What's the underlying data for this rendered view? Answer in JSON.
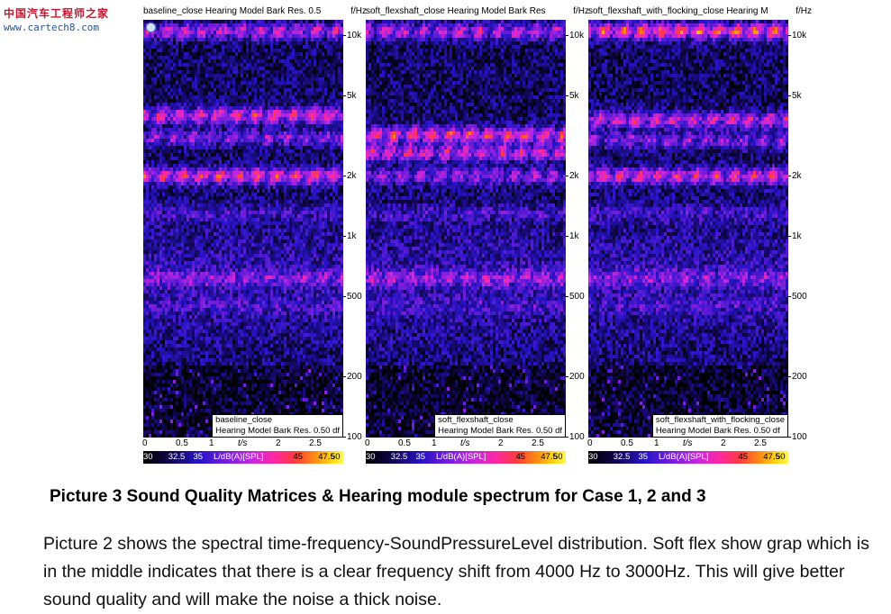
{
  "watermark": {
    "text": "中国汽车工程师之家",
    "url": "www.cartech8.com"
  },
  "chart_data": [
    {
      "type": "heatmap",
      "title": "baseline_close Hearing Model Bark Res. 0.5",
      "yunit": "f/Hz",
      "overlay_name": "baseline_close",
      "overlay_res": "Hearing Model Bark Res. 0.50 df",
      "xlabel": "t/s",
      "xticks": [
        "0",
        "0.5",
        "1",
        "2",
        "2.5"
      ],
      "xlim": [
        0,
        3
      ],
      "yticks": [
        "10k",
        "5k",
        "2k",
        "1k",
        "500",
        "200",
        "100"
      ],
      "ylim": [
        100,
        12000
      ],
      "ylog": true,
      "colorbar": {
        "label": "L/dB(A)[SPL]",
        "ticks": [
          "30",
          "32.5",
          "35",
          "45",
          "47.5",
          "50"
        ],
        "range": [
          30,
          50
        ]
      },
      "bands": [
        {
          "hz": 10500,
          "level": 42
        },
        {
          "hz": 4000,
          "level": 44
        },
        {
          "hz": 3100,
          "level": 40
        },
        {
          "hz": 2000,
          "level": 45
        },
        {
          "hz": 1300,
          "level": 37
        },
        {
          "hz": 620,
          "level": 40
        },
        {
          "hz": 450,
          "level": 37
        }
      ]
    },
    {
      "type": "heatmap",
      "title": "soft_flexshaft_close Hearing Model Bark Res",
      "yunit": "f/Hz",
      "overlay_name": "soft_flexshaft_close",
      "overlay_res": "Hearing Model Bark Res. 0.50 df",
      "xlabel": "t/s",
      "xticks": [
        "0",
        "0.5",
        "1",
        "2",
        "2.5"
      ],
      "xlim": [
        0,
        3
      ],
      "yticks": [
        "10k",
        "5k",
        "2k",
        "1k",
        "500",
        "200",
        "100"
      ],
      "ylim": [
        100,
        12000
      ],
      "ylog": true,
      "colorbar": {
        "label": "L/dB(A)[SPL]",
        "ticks": [
          "30",
          "32.5",
          "35",
          "45",
          "47.5",
          "50"
        ],
        "range": [
          30,
          50
        ]
      },
      "bands": [
        {
          "hz": 10500,
          "level": 42
        },
        {
          "hz": 3200,
          "level": 45
        },
        {
          "hz": 2600,
          "level": 43
        },
        {
          "hz": 2000,
          "level": 40
        },
        {
          "hz": 1300,
          "level": 37
        },
        {
          "hz": 620,
          "level": 41
        },
        {
          "hz": 450,
          "level": 37
        }
      ]
    },
    {
      "type": "heatmap",
      "title": "soft_flexshaft_with_flocking_close Hearing M",
      "yunit": "f/Hz",
      "overlay_name": "soft_flexshaft_with_flocking_close",
      "overlay_res": "Hearing Model Bark Res. 0.50 df",
      "xlabel": "t/s",
      "xticks": [
        "0",
        "0.5",
        "1",
        "2",
        "2.5"
      ],
      "xlim": [
        0,
        3
      ],
      "yticks": [
        "10k",
        "5k",
        "2k",
        "1k",
        "500",
        "200",
        "100"
      ],
      "ylim": [
        100,
        12000
      ],
      "ylog": true,
      "colorbar": {
        "label": "L/dB(A)[SPL]",
        "ticks": [
          "30",
          "32.5",
          "35",
          "45",
          "47.5",
          "50"
        ],
        "range": [
          30,
          50
        ]
      },
      "bands": [
        {
          "hz": 10500,
          "level": 46
        },
        {
          "hz": 3800,
          "level": 43
        },
        {
          "hz": 3000,
          "level": 40
        },
        {
          "hz": 2000,
          "level": 44
        },
        {
          "hz": 1300,
          "level": 37
        },
        {
          "hz": 620,
          "level": 40
        },
        {
          "hz": 450,
          "level": 37
        }
      ]
    }
  ],
  "caption": "Picture 3  Sound Quality Matrices & Hearing module spectrum for Case 1, 2 and 3",
  "paragraph": "Picture 2 shows the spectral time-frequency-SoundPressureLevel distribution. Soft flex show grap which is in the middle indicates that there is a clear frequency shift from 4000 Hz to 3000Hz.  This will give better sound quality and will make the noise a thick noise."
}
